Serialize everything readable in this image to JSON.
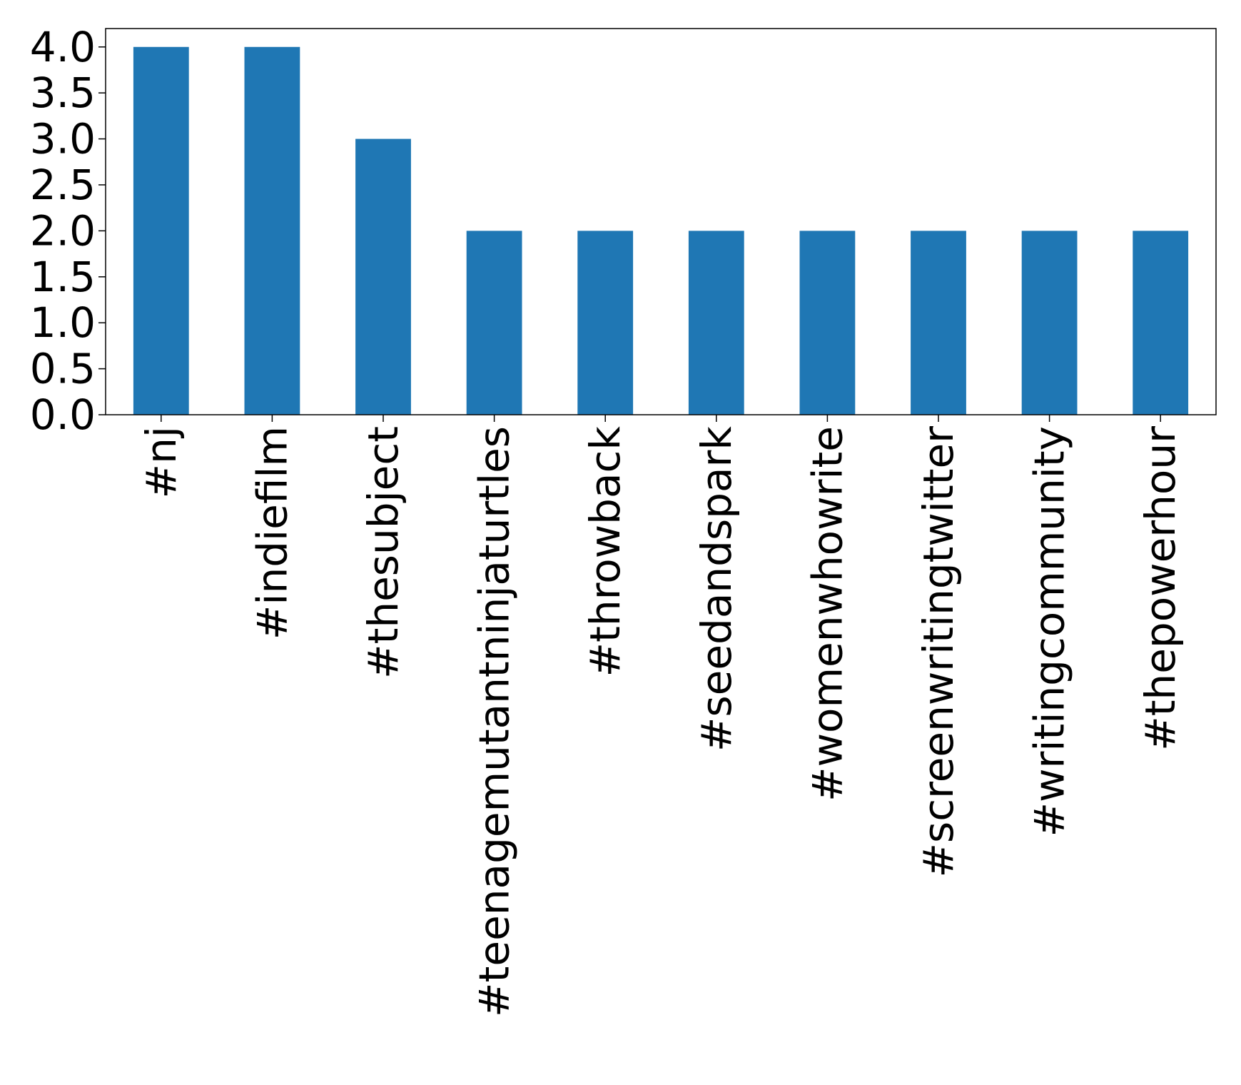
{
  "chart_data": {
    "type": "bar",
    "title": "",
    "xlabel": "",
    "ylabel": "",
    "categories": [
      "#nj",
      "#indiefilm",
      "#thesubject",
      "#teenagemutantninjaturtles",
      "#throwback",
      "#seedandspark",
      "#womenwhowrite",
      "#screenwritingtwitter",
      "#writingcommunity",
      "#thepowerhour"
    ],
    "values": [
      4,
      4,
      3,
      2,
      2,
      2,
      2,
      2,
      2,
      2
    ],
    "ylim": [
      0,
      4.2
    ],
    "yticks": [
      "0.0",
      "0.5",
      "1.0",
      "1.5",
      "2.0",
      "2.5",
      "3.0",
      "3.5",
      "4.0"
    ],
    "bar_color": "#1f77b4",
    "grid": false,
    "legend": "none"
  }
}
